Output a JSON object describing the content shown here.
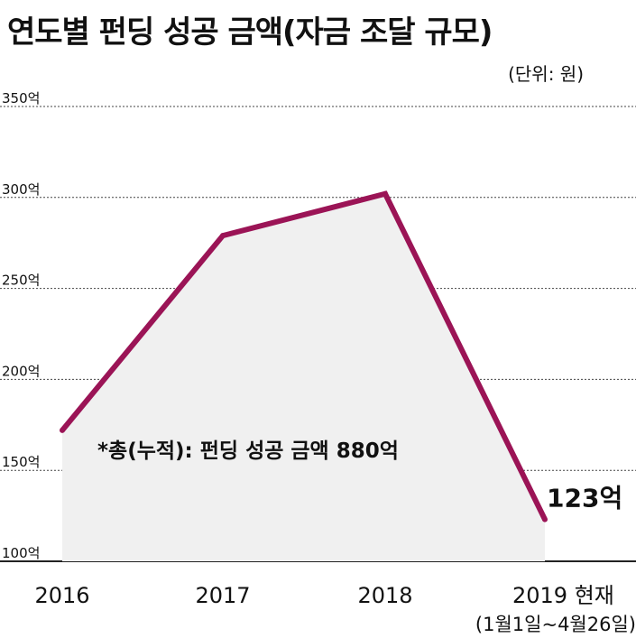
{
  "title": "연도별 펀딩 성공 금액(자금 조달 규모)",
  "unit_label": "(단위: 원)",
  "note": "*총(누적): 펀딩 성공 금액 880억",
  "last_value_label": "123억",
  "period_label": "(1월1일~4월26일)",
  "colors": {
    "line": "#9b1456",
    "area": "#f0f0f0",
    "grid": "#444444"
  },
  "chart_data": {
    "type": "area",
    "title": "연도별 펀딩 성공 금액(자금 조달 규모)",
    "xlabel": "",
    "ylabel": "",
    "unit": "억",
    "categories": [
      "2016",
      "2017",
      "2018",
      "2019 현재"
    ],
    "values": [
      172,
      279,
      302,
      123
    ],
    "ylim": [
      100,
      350
    ],
    "yticks": [
      100,
      150,
      200,
      250,
      300,
      350
    ],
    "ytick_labels": [
      "100억",
      "150억",
      "200억",
      "250억",
      "300억",
      "350억"
    ],
    "grid": true,
    "legend": "none"
  }
}
